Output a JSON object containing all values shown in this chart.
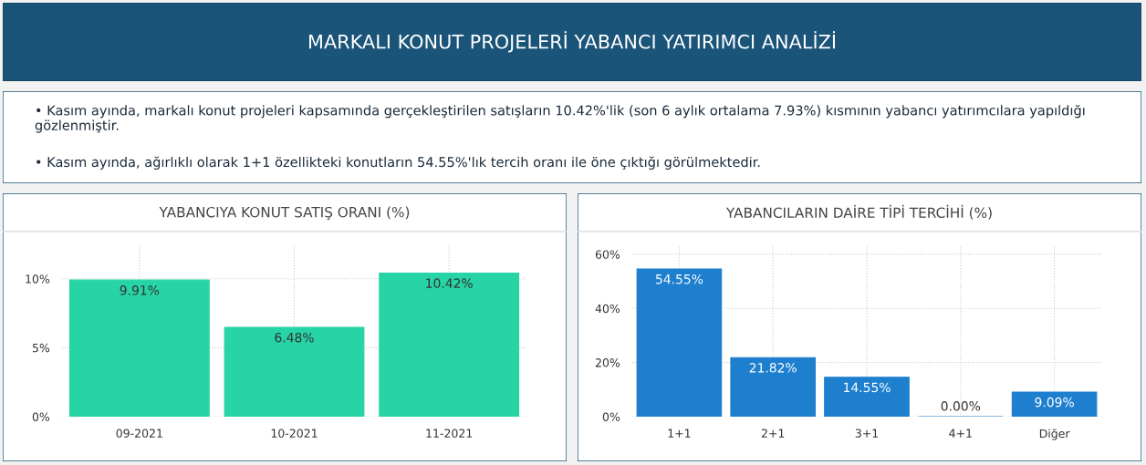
{
  "chart_data": [
    {
      "type": "other",
      "title": "MARKALI KONUT PROJELERİ YABANCI YATIRIMCI ANALİZİ",
      "annotations": [
        "• Kasım ayında, markalı konut projeleri kapsamında gerçekleştirilen satışların 10.42%'lik (son 6 aylık ortalama 7.93%) kısmının yabancı yatırımcılara yapıldığı gözlenmiştir.",
        "• Kasım ayında, ağırlıklı olarak 1+1 özellikteki konutların 54.55%'lık tercih oranı ile öne çıktığı görülmektedir."
      ]
    },
    {
      "type": "bar",
      "title": "YABANCIYA KONUT SATIŞ ORANI (%)",
      "categories": [
        "09-2021",
        "10-2021",
        "11-2021"
      ],
      "values": [
        9.91,
        6.48,
        10.42
      ],
      "value_labels": [
        "9.91%",
        "6.48%",
        "10.42%"
      ],
      "color": "#27d4a5",
      "ylim": [
        0,
        12.5
      ],
      "yticks": [
        {
          "value": 0,
          "label": "0%"
        },
        {
          "value": 5,
          "label": "5%"
        },
        {
          "value": 10,
          "label": "10%"
        }
      ],
      "grid": true,
      "legend": false
    },
    {
      "type": "bar",
      "title": "YABANCILARIN DAİRE TİPİ TERCİHİ (%)",
      "categories": [
        "1+1",
        "2+1",
        "3+1",
        "4+1",
        "Diğer"
      ],
      "values": [
        54.55,
        21.82,
        14.55,
        0.0,
        9.09
      ],
      "value_labels": [
        "54.55%",
        "21.82%",
        "14.55%",
        "0.00%",
        "9.09%"
      ],
      "color": "#1e7fcf",
      "ylim": [
        0,
        63
      ],
      "yticks": [
        {
          "value": 0,
          "label": "0%"
        },
        {
          "value": 20,
          "label": "20%"
        },
        {
          "value": 40,
          "label": "40%"
        },
        {
          "value": 60,
          "label": "60%"
        }
      ],
      "grid": true,
      "legend": false
    }
  ]
}
